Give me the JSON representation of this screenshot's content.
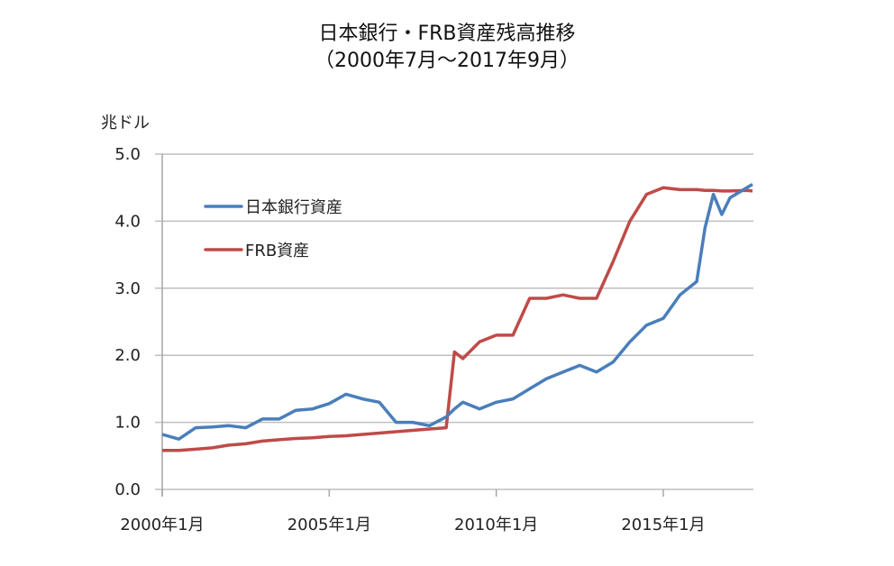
{
  "title_line1": "日本銀行・FRB資産残高推移",
  "title_line2": "（2000年7月～2017年9月）",
  "unit_label": "兆ドル",
  "colors": {
    "boj": "#4a7ebb",
    "frb": "#be4b48",
    "grid": "#bfbfbf",
    "axis": "#a6a6a6"
  },
  "chart_data": {
    "type": "line",
    "title": "日本銀行・FRB資産残高推移（2000年7月～2017年9月）",
    "xlabel": "",
    "ylabel": "兆ドル",
    "ylim": [
      0,
      5
    ],
    "yticks": [
      "0.0",
      "1.0",
      "2.0",
      "3.0",
      "4.0",
      "5.0"
    ],
    "xticks": [
      "2000年1月",
      "2005年1月",
      "2010年1月",
      "2015年1月"
    ],
    "grid": true,
    "legend_position": "upper-left inside",
    "x": [
      2000.0,
      2000.5,
      2001.0,
      2001.5,
      2002.0,
      2002.5,
      2003.0,
      2003.5,
      2004.0,
      2004.5,
      2005.0,
      2005.5,
      2006.0,
      2006.5,
      2007.0,
      2007.5,
      2008.0,
      2008.5,
      2008.75,
      2009.0,
      2009.5,
      2010.0,
      2010.5,
      2011.0,
      2011.5,
      2012.0,
      2012.5,
      2013.0,
      2013.5,
      2014.0,
      2014.5,
      2015.0,
      2015.5,
      2016.0,
      2016.25,
      2016.5,
      2016.75,
      2017.0,
      2017.5,
      2017.67
    ],
    "series": [
      {
        "name": "日本銀行資産",
        "values": [
          0.82,
          0.75,
          0.92,
          0.93,
          0.95,
          0.92,
          1.05,
          1.05,
          1.18,
          1.2,
          1.28,
          1.42,
          1.35,
          1.3,
          1.0,
          1.0,
          0.95,
          1.08,
          1.2,
          1.3,
          1.2,
          1.3,
          1.35,
          1.5,
          1.65,
          1.75,
          1.85,
          1.75,
          1.9,
          2.2,
          2.45,
          2.55,
          2.9,
          3.1,
          3.9,
          4.4,
          4.1,
          4.35,
          4.5,
          4.55
        ]
      },
      {
        "name": "FRB資産",
        "values": [
          0.58,
          0.58,
          0.6,
          0.62,
          0.66,
          0.68,
          0.72,
          0.74,
          0.76,
          0.77,
          0.79,
          0.8,
          0.82,
          0.84,
          0.86,
          0.88,
          0.9,
          0.92,
          2.05,
          1.95,
          2.2,
          2.3,
          2.3,
          2.85,
          2.85,
          2.9,
          2.85,
          2.85,
          3.4,
          4.0,
          4.4,
          4.5,
          4.47,
          4.47,
          4.46,
          4.46,
          4.45,
          4.45,
          4.46,
          4.45
        ]
      }
    ]
  }
}
